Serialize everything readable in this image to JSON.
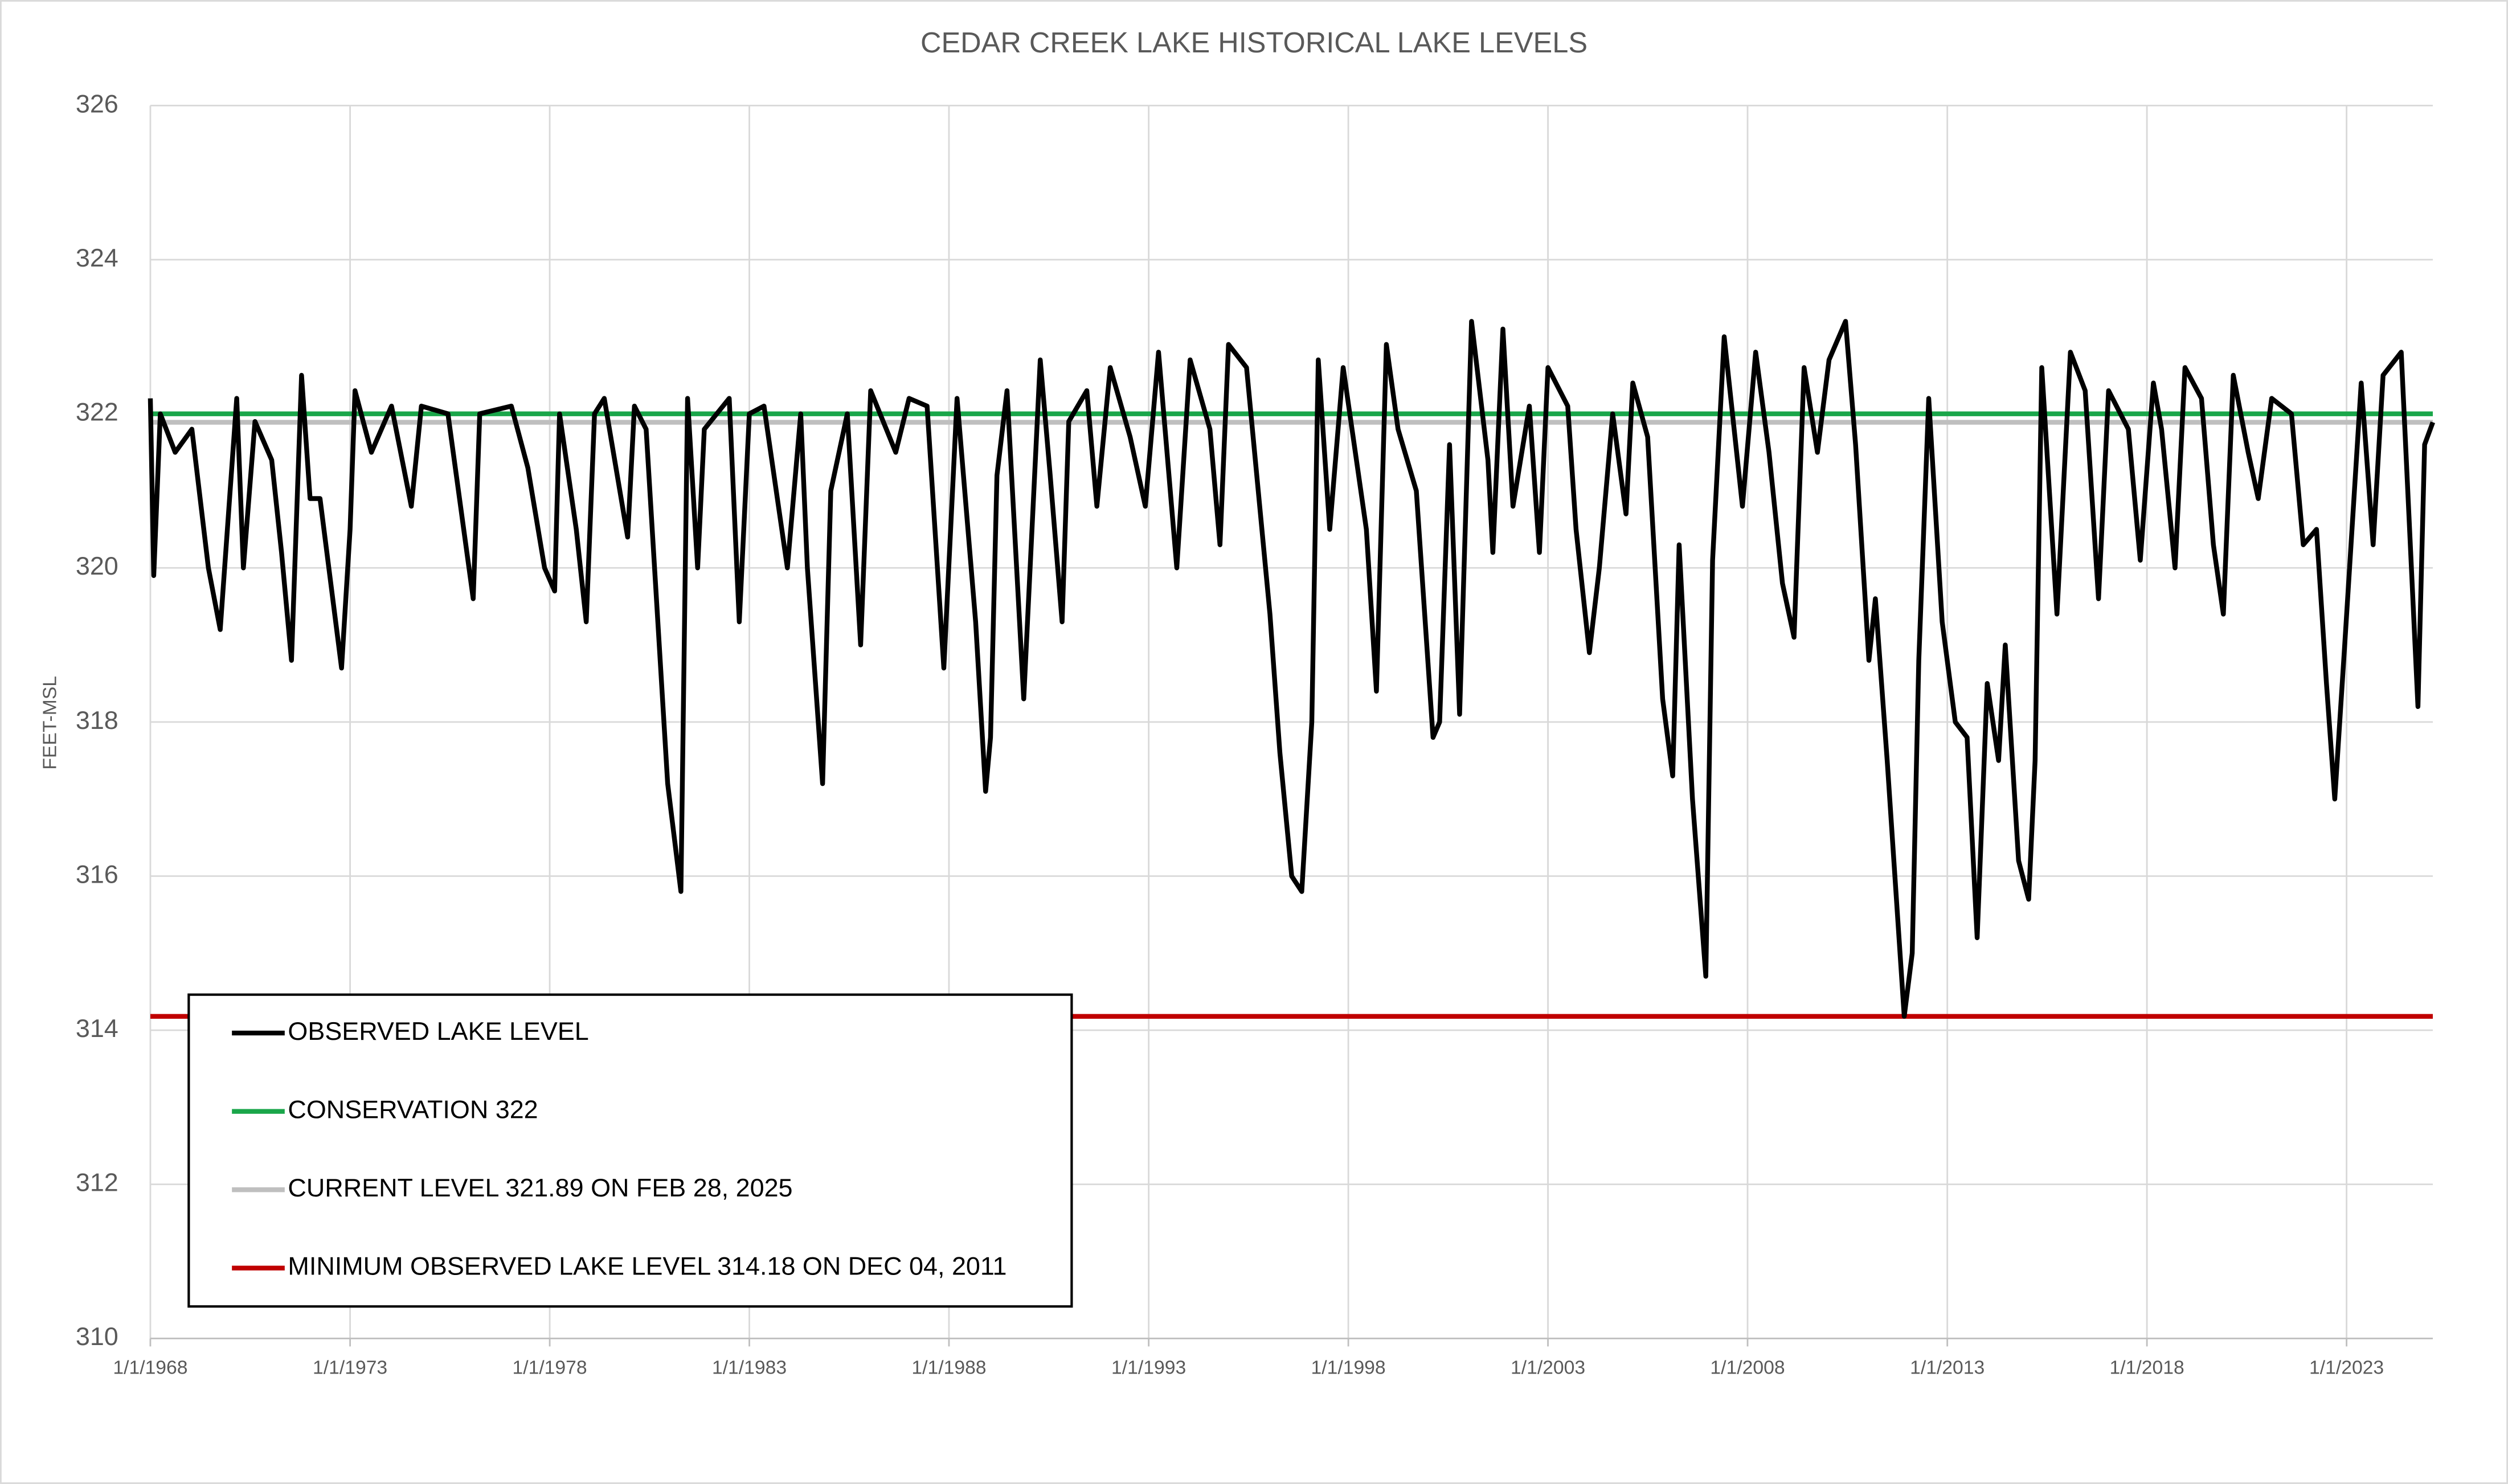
{
  "chart_data": {
    "type": "line",
    "title": "CEDAR CREEK LAKE HISTORICAL LAKE LEVELS",
    "y_label": "FEET-MSL",
    "x": [
      "1968-01-01",
      "1968-02-01",
      "1968-04-01",
      "1968-08-15",
      "1969-01-15",
      "1969-06-15",
      "1969-10-01",
      "1970-03-01",
      "1970-05-01",
      "1970-08-15",
      "1971-01-15",
      "1971-04-15",
      "1971-07-15",
      "1971-10-15",
      "1972-01-01",
      "1972-04-01",
      "1972-10-15",
      "1973-01-01",
      "1973-02-15",
      "1973-07-15",
      "1974-01-15",
      "1974-07-15",
      "1974-10-15",
      "1975-06-15",
      "1976-02-01",
      "1976-04-01",
      "1977-01-15",
      "1977-06-15",
      "1977-11-15",
      "1978-02-15",
      "1978-04-01",
      "1978-09-01",
      "1978-12-01",
      "1979-02-15",
      "1979-05-15",
      "1979-12-15",
      "1980-02-15",
      "1980-06-01",
      "1980-12-15",
      "1981-04-15",
      "1981-06-15",
      "1981-09-15",
      "1981-11-15",
      "1982-07-01",
      "1982-10-01",
      "1983-01-01",
      "1983-05-15",
      "1983-12-15",
      "1984-04-15",
      "1984-06-15",
      "1984-11-01",
      "1985-01-15",
      "1985-06-15",
      "1985-10-15",
      "1986-01-15",
      "1986-09-01",
      "1987-01-01",
      "1987-06-15",
      "1987-11-15",
      "1988-03-15",
      "1988-09-01",
      "1988-12-01",
      "1989-01-15",
      "1989-03-15",
      "1989-06-15",
      "1989-11-15",
      "1990-04-15",
      "1990-07-15",
      "1990-11-01",
      "1991-01-01",
      "1991-06-15",
      "1991-09-15",
      "1992-01-15",
      "1992-07-15",
      "1992-12-01",
      "1993-04-01",
      "1993-09-15",
      "1994-01-15",
      "1994-07-15",
      "1994-10-15",
      "1995-01-01",
      "1995-06-15",
      "1996-01-15",
      "1996-04-15",
      "1996-08-01",
      "1996-11-01",
      "1997-02-01",
      "1997-04-01",
      "1997-07-15",
      "1997-11-15",
      "1998-06-15",
      "1998-09-15",
      "1998-12-15",
      "1999-04-01",
      "1999-09-15",
      "2000-02-15",
      "2000-04-15",
      "2000-07-15",
      "2000-10-15",
      "2001-02-01",
      "2001-07-01",
      "2001-08-15",
      "2001-11-15",
      "2002-02-15",
      "2002-07-15",
      "2002-10-15",
      "2003-01-01",
      "2003-07-01",
      "2003-09-15",
      "2004-01-15",
      "2004-04-15",
      "2004-08-15",
      "2004-12-15",
      "2005-02-15",
      "2005-07-01",
      "2005-11-15",
      "2006-02-15",
      "2006-04-15",
      "2006-08-15",
      "2006-12-15",
      "2007-02-15",
      "2007-06-01",
      "2007-11-15",
      "2008-03-15",
      "2008-07-15",
      "2008-11-15",
      "2009-03-01",
      "2009-06-01",
      "2009-10-01",
      "2010-01-15",
      "2010-06-15",
      "2010-09-15",
      "2011-01-15",
      "2011-03-15",
      "2011-07-01",
      "2011-12-04",
      "2012-02-15",
      "2012-04-15",
      "2012-07-15",
      "2012-11-15",
      "2013-03-15",
      "2013-07-01",
      "2013-10-01",
      "2014-01-01",
      "2014-04-15",
      "2014-06-15",
      "2014-10-15",
      "2015-01-15",
      "2015-03-15",
      "2015-05-15",
      "2015-10-01",
      "2016-02-01",
      "2016-06-15",
      "2016-10-15",
      "2017-01-15",
      "2017-07-15",
      "2017-11-01",
      "2018-03-01",
      "2018-05-15",
      "2018-09-15",
      "2018-12-15",
      "2019-05-15",
      "2019-09-01",
      "2019-12-01",
      "2020-03-01",
      "2020-07-15",
      "2020-10-15",
      "2021-02-15",
      "2021-08-15",
      "2021-12-01",
      "2022-04-01",
      "2022-07-01",
      "2022-09-15",
      "2022-12-15",
      "2023-05-15",
      "2023-09-01",
      "2023-12-01",
      "2024-05-15",
      "2024-10-15",
      "2024-12-15",
      "2025-02-28"
    ],
    "series": [
      {
        "name": "OBSERVED LAKE LEVEL",
        "color": "#000000",
        "values": [
          322.2,
          319.9,
          322.0,
          321.5,
          321.8,
          320.0,
          319.2,
          322.2,
          320.0,
          321.9,
          321.4,
          320.2,
          318.8,
          322.5,
          320.9,
          320.9,
          318.7,
          320.5,
          322.3,
          321.5,
          322.1,
          320.8,
          322.1,
          322.0,
          319.6,
          322.0,
          322.1,
          321.3,
          320.0,
          319.7,
          322.0,
          320.5,
          319.3,
          322.0,
          322.2,
          320.4,
          322.1,
          321.8,
          317.2,
          315.8,
          322.2,
          320.0,
          321.8,
          322.2,
          319.3,
          322.0,
          322.1,
          320.0,
          322.0,
          320.0,
          317.2,
          321.0,
          322.0,
          319.0,
          322.3,
          321.5,
          322.2,
          322.1,
          318.7,
          322.2,
          319.3,
          317.1,
          317.8,
          321.2,
          322.3,
          318.3,
          322.7,
          321.2,
          319.3,
          321.9,
          322.3,
          320.8,
          322.6,
          321.7,
          320.8,
          322.8,
          320.0,
          322.7,
          321.8,
          320.3,
          322.9,
          322.6,
          319.4,
          317.6,
          316.0,
          315.8,
          318.0,
          322.7,
          320.5,
          322.6,
          320.5,
          318.4,
          322.9,
          321.8,
          321.0,
          317.8,
          318.0,
          321.6,
          318.1,
          323.2,
          321.4,
          320.2,
          323.1,
          320.8,
          322.1,
          320.2,
          322.6,
          322.1,
          320.5,
          318.9,
          320.0,
          322.0,
          320.7,
          322.4,
          321.7,
          318.3,
          317.3,
          320.3,
          317.0,
          314.7,
          320.1,
          323.0,
          320.8,
          322.8,
          321.5,
          319.8,
          319.1,
          322.6,
          321.5,
          322.7,
          323.2,
          321.6,
          318.8,
          319.6,
          317.5,
          314.18,
          315.0,
          318.8,
          322.2,
          319.3,
          318.0,
          317.8,
          315.2,
          318.5,
          317.5,
          319.0,
          316.2,
          315.7,
          317.5,
          322.6,
          319.4,
          322.8,
          322.3,
          319.6,
          322.3,
          321.8,
          320.1,
          322.4,
          321.8,
          320.0,
          322.6,
          322.2,
          320.3,
          319.4,
          322.5,
          321.5,
          320.9,
          322.2,
          322.0,
          320.3,
          320.5,
          318.5,
          317.0,
          319.0,
          322.4,
          320.3,
          322.5,
          322.8,
          318.2,
          321.6,
          321.89
        ]
      }
    ],
    "reference_lines": [
      {
        "name": "CONSERVATION 322",
        "value": 322,
        "color": "#1aa64a"
      },
      {
        "name": "CURRENT LEVEL 321.89 ON FEB 28, 2025",
        "value": 321.89,
        "color": "#bfbfbf"
      },
      {
        "name": "MINIMUM OBSERVED LAKE LEVEL 314.18 ON DEC 04, 2011",
        "value": 314.18,
        "color": "#c00000"
      }
    ],
    "xlim": [
      "1968-01-01",
      "2025-02-28"
    ],
    "xticks": [
      {
        "value": "1968-01-01",
        "label": "1/1/1968"
      },
      {
        "value": "1973-01-01",
        "label": "1/1/1973"
      },
      {
        "value": "1978-01-01",
        "label": "1/1/1978"
      },
      {
        "value": "1983-01-01",
        "label": "1/1/1983"
      },
      {
        "value": "1988-01-01",
        "label": "1/1/1988"
      },
      {
        "value": "1993-01-01",
        "label": "1/1/1993"
      },
      {
        "value": "1998-01-01",
        "label": "1/1/1998"
      },
      {
        "value": "2003-01-01",
        "label": "1/1/2003"
      },
      {
        "value": "2008-01-01",
        "label": "1/1/2008"
      },
      {
        "value": "2013-01-01",
        "label": "1/1/2013"
      },
      {
        "value": "2018-01-01",
        "label": "1/1/2018"
      },
      {
        "value": "2023-01-01",
        "label": "1/1/2023"
      }
    ],
    "ylim": [
      310,
      326
    ],
    "yticks": [
      310,
      312,
      314,
      316,
      318,
      320,
      322,
      324,
      326
    ],
    "grid": true,
    "legend": "lower left"
  }
}
